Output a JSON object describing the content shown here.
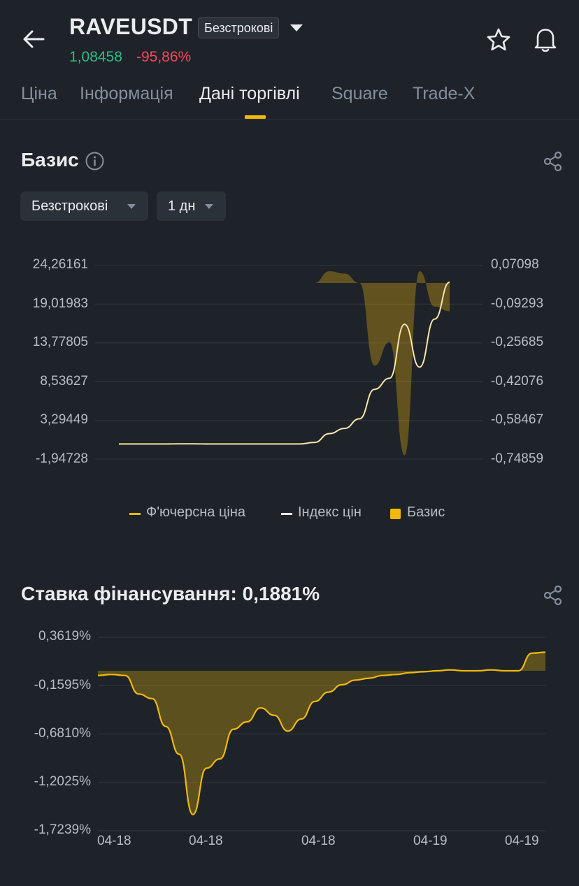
{
  "header": {
    "symbol": "RAVEUSDT",
    "contract_badge": "Безстрокові",
    "price": "1,08458",
    "change": "-95,86%",
    "colors": {
      "up": "#2ebd85",
      "down": "#f6465d",
      "accent": "#f0b90b"
    }
  },
  "tabs": [
    {
      "label": "Ціна"
    },
    {
      "label": "Інформація"
    },
    {
      "label": "Дані торгівлі",
      "active": true
    },
    {
      "label": "Square"
    },
    {
      "label": "Trade-X"
    }
  ],
  "basis": {
    "title": "Базис",
    "filter_contract": "Безстрокові",
    "filter_period": "1 дн",
    "left_axis": [
      "24,26161",
      "19,01983",
      "13,77805",
      "8,53627",
      "3,29449",
      "-1,94728"
    ],
    "right_axis": [
      "0,07098",
      "-0,09293",
      "-0,25685",
      "-0,42076",
      "-0,58467",
      "-0,74859"
    ],
    "legend": {
      "futures": "Ф'ючерсна ціна",
      "index": "Індекс цін",
      "basis": "Базис"
    }
  },
  "funding": {
    "title": "Ставка фінансування: 0,1881%",
    "y_axis": [
      "0,3619%",
      "-0,1595%",
      "-0,6810%",
      "-1,2025%",
      "-1,7239%"
    ],
    "x_axis": [
      "04-18",
      "04-18",
      "04-18",
      "04-19",
      "04-19"
    ]
  },
  "chart_data": [
    {
      "type": "line",
      "title": "Базис",
      "series": [
        {
          "name": "Ф'ючерсна ціна",
          "axis": "left",
          "color": "#f0b90b",
          "values": [
            0.1,
            0.1,
            0.1,
            0.1,
            0.12,
            0.12,
            0.1,
            0.1,
            0.1,
            0.1,
            0.1,
            0.1,
            0.1,
            0.3,
            1.5,
            2.2,
            3.5,
            7.5,
            9.0,
            16.3,
            10.5,
            17.0,
            22.0
          ]
        },
        {
          "name": "Індекс цін",
          "axis": "left",
          "color": "#eaecef",
          "values": [
            0.1,
            0.1,
            0.1,
            0.1,
            0.12,
            0.12,
            0.1,
            0.1,
            0.1,
            0.1,
            0.1,
            0.1,
            0.1,
            0.3,
            1.5,
            2.2,
            3.5,
            7.5,
            9.0,
            16.3,
            10.5,
            17.0,
            22.0
          ]
        },
        {
          "name": "Базис",
          "axis": "right",
          "type": "area",
          "color": "#f0b90b",
          "values": [
            0.0,
            0.0,
            0.0,
            0.0,
            0.0,
            0.0,
            0.0,
            0.0,
            0.0,
            0.0,
            0.0,
            0.0,
            0.0,
            0.0,
            0.05,
            0.04,
            0.0,
            -0.35,
            -0.25,
            -0.73,
            0.05,
            -0.1,
            -0.12
          ]
        }
      ],
      "left_ylim": [
        -1.94728,
        24.26161
      ],
      "right_ylim": [
        -0.74859,
        0.07098
      ],
      "grid": true,
      "legend_position": "bottom"
    },
    {
      "type": "area",
      "title": "Ставка фінансування: 0,1881%",
      "series": [
        {
          "color": "#f0b90b",
          "values": [
            -0.05,
            -0.04,
            -0.05,
            -0.25,
            -0.3,
            -0.6,
            -0.9,
            -1.55,
            -1.05,
            -0.95,
            -0.63,
            -0.55,
            -0.4,
            -0.48,
            -0.65,
            -0.52,
            -0.33,
            -0.23,
            -0.15,
            -0.1,
            -0.08,
            -0.05,
            -0.04,
            -0.02,
            -0.01,
            0.0,
            0.01,
            0.0,
            0.0,
            0.01,
            0.0,
            0.0,
            0.19,
            0.2
          ]
        }
      ],
      "xticks": [
        "04-18",
        "04-18",
        "04-18",
        "04-19",
        "04-19"
      ],
      "ylim": [
        -1.7239,
        0.3619
      ],
      "grid": true
    }
  ]
}
